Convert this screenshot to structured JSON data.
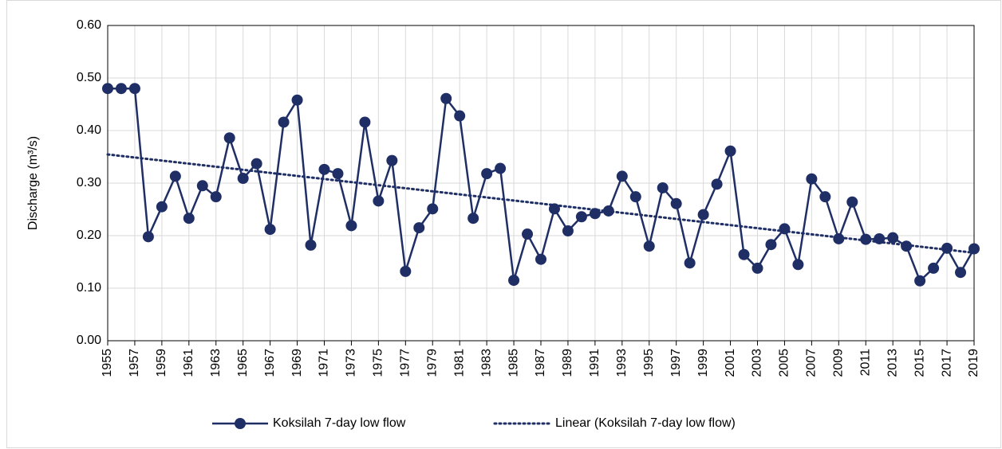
{
  "chart_data": {
    "type": "line",
    "y_label": "Discharge (m³/s)",
    "x": [
      1955,
      1956,
      1957,
      1958,
      1959,
      1960,
      1961,
      1962,
      1963,
      1964,
      1965,
      1966,
      1967,
      1968,
      1969,
      1970,
      1971,
      1972,
      1973,
      1974,
      1975,
      1976,
      1977,
      1978,
      1979,
      1980,
      1981,
      1982,
      1983,
      1984,
      1985,
      1986,
      1987,
      1988,
      1989,
      1990,
      1991,
      1992,
      1993,
      1994,
      1995,
      1996,
      1997,
      1998,
      1999,
      2000,
      2001,
      2002,
      2003,
      2004,
      2005,
      2006,
      2007,
      2008,
      2009,
      2010,
      2011,
      2012,
      2013,
      2014,
      2015,
      2016,
      2017,
      2018,
      2019
    ],
    "series": [
      {
        "name": "Koksilah 7-day low flow",
        "color": "#1f2f66",
        "values": [
          0.48,
          0.48,
          0.48,
          0.198,
          0.255,
          0.313,
          0.233,
          0.295,
          0.274,
          0.386,
          0.309,
          0.337,
          0.212,
          0.416,
          0.458,
          0.182,
          0.326,
          0.318,
          0.219,
          0.416,
          0.266,
          0.343,
          0.132,
          0.215,
          0.251,
          0.461,
          0.428,
          0.233,
          0.318,
          0.328,
          0.115,
          0.203,
          0.155,
          0.251,
          0.209,
          0.236,
          0.242,
          0.247,
          0.313,
          0.274,
          0.18,
          0.291,
          0.261,
          0.148,
          0.24,
          0.298,
          0.361,
          0.164,
          0.138,
          0.183,
          0.213,
          0.145,
          0.308,
          0.274,
          0.194,
          0.264,
          0.193,
          0.194,
          0.196,
          0.18,
          0.114,
          0.138,
          0.176,
          0.13,
          0.175
        ]
      }
    ],
    "trendline": {
      "name": "Linear (Koksilah 7-day low flow)",
      "kind": "linear",
      "color": "#1f2f66"
    },
    "xlim": [
      1955,
      2019
    ],
    "xticks": [
      1955,
      1957,
      1959,
      1961,
      1963,
      1965,
      1967,
      1969,
      1971,
      1973,
      1975,
      1977,
      1979,
      1981,
      1983,
      1985,
      1987,
      1989,
      1991,
      1993,
      1995,
      1997,
      1999,
      2001,
      2003,
      2005,
      2007,
      2009,
      2011,
      2013,
      2015,
      2017,
      2019
    ],
    "ylim": [
      0,
      0.6
    ],
    "yticks": [
      {
        "value": 0,
        "label": "0.00"
      },
      {
        "value": 0.1,
        "label": "0.10"
      },
      {
        "value": 0.2,
        "label": "0.20"
      },
      {
        "value": 0.3,
        "label": "0.30"
      },
      {
        "value": 0.4,
        "label": "0.40"
      },
      {
        "value": 0.5,
        "label": "0.50"
      },
      {
        "value": 0.6,
        "label": "0.60"
      }
    ],
    "grid": true,
    "legend": "bottom"
  }
}
